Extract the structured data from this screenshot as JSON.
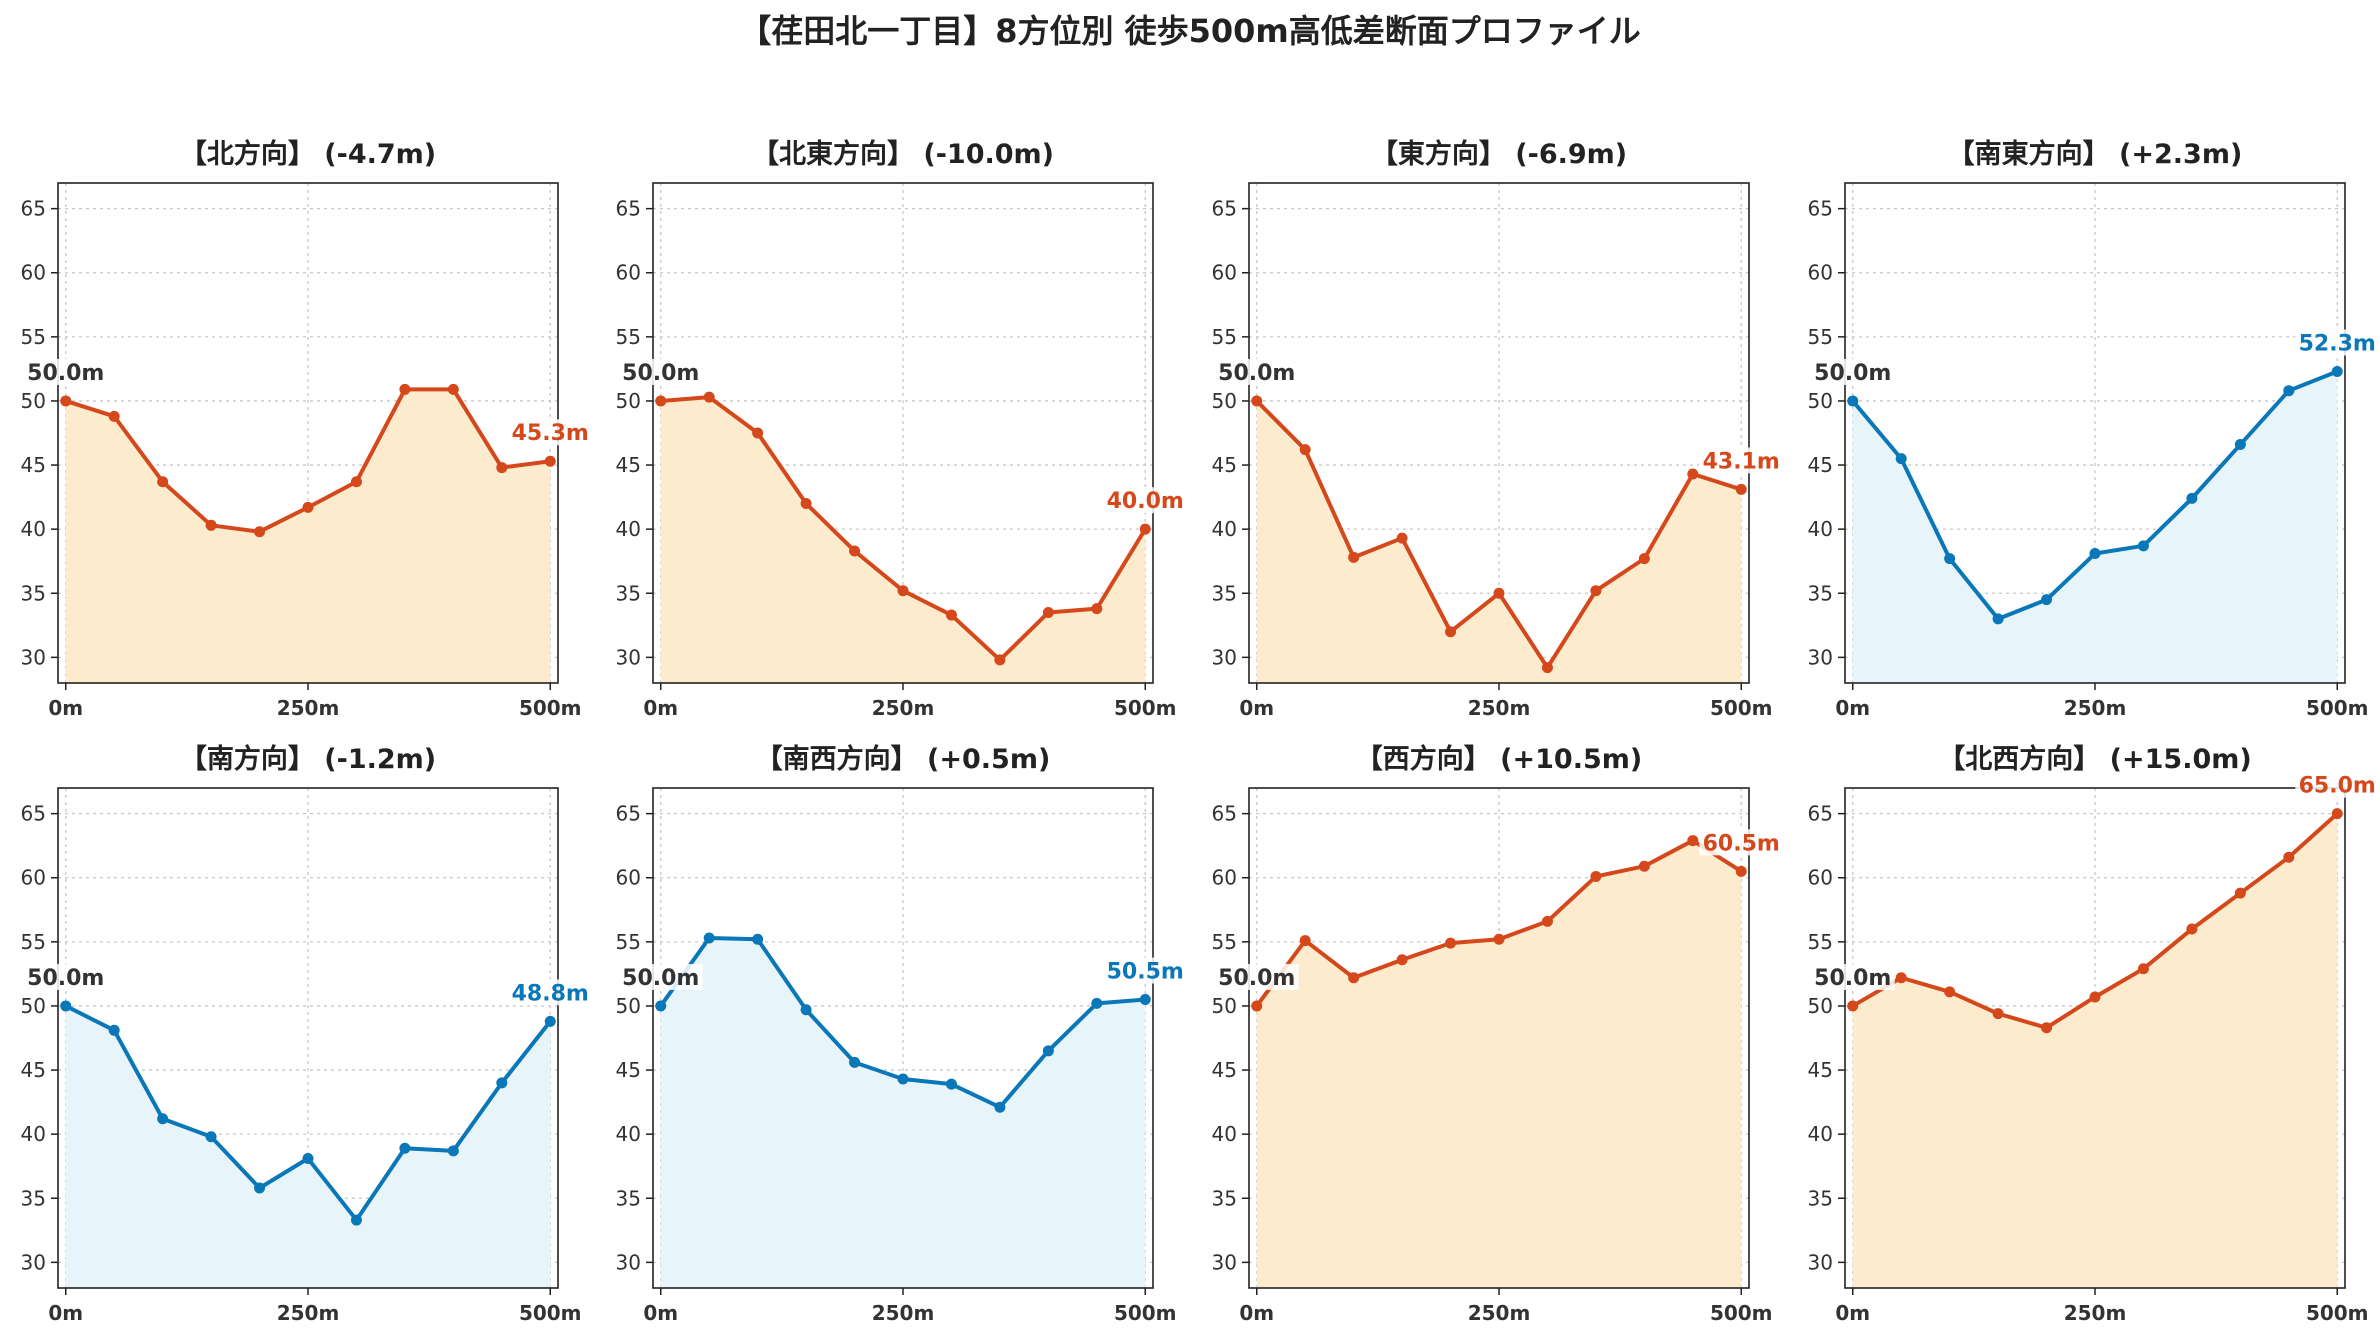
{
  "title": "【荏田北一丁目】8方位別 徒歩500m高低差断面プロファイル",
  "colors": {
    "up": "#d4481c",
    "up_fill": "#fdebcd",
    "down": "#0a77b8",
    "down_fill": "#e7f5fb",
    "start_label": "#333333"
  },
  "chart_data": [
    {
      "type": "line",
      "title": "【北方向】 (-4.7m)",
      "x": [
        0,
        50,
        100,
        150,
        200,
        250,
        300,
        350,
        400,
        450,
        500
      ],
      "values": [
        50.0,
        48.8,
        43.7,
        40.3,
        39.8,
        41.7,
        43.7,
        50.9,
        50.9,
        44.8,
        45.3
      ],
      "start_label": "50.0m",
      "end_label": "45.3m",
      "trend": "up",
      "xticks": [
        "0m",
        "250m",
        "500m"
      ],
      "yticks": [
        30,
        35,
        40,
        45,
        50,
        55,
        60,
        65
      ],
      "ylim": [
        28,
        67
      ],
      "xlim": [
        -8,
        508
      ],
      "grid": true
    },
    {
      "type": "line",
      "title": "【北東方向】 (-10.0m)",
      "x": [
        0,
        50,
        100,
        150,
        200,
        250,
        300,
        350,
        400,
        450,
        500
      ],
      "values": [
        50.0,
        50.3,
        47.5,
        42.0,
        38.3,
        35.2,
        33.3,
        29.8,
        33.5,
        33.8,
        40.0
      ],
      "start_label": "50.0m",
      "end_label": "40.0m",
      "trend": "up",
      "xticks": [
        "0m",
        "250m",
        "500m"
      ],
      "yticks": [
        30,
        35,
        40,
        45,
        50,
        55,
        60,
        65
      ],
      "ylim": [
        28,
        67
      ],
      "xlim": [
        -8,
        508
      ],
      "grid": true
    },
    {
      "type": "line",
      "title": "【東方向】 (-6.9m)",
      "x": [
        0,
        50,
        100,
        150,
        200,
        250,
        300,
        350,
        400,
        450,
        500
      ],
      "values": [
        50.0,
        46.2,
        37.8,
        39.3,
        32.0,
        35.0,
        29.2,
        35.2,
        37.7,
        44.3,
        43.1
      ],
      "start_label": "50.0m",
      "end_label": "43.1m",
      "trend": "up",
      "xticks": [
        "0m",
        "250m",
        "500m"
      ],
      "yticks": [
        30,
        35,
        40,
        45,
        50,
        55,
        60,
        65
      ],
      "ylim": [
        28,
        67
      ],
      "xlim": [
        -8,
        508
      ],
      "grid": true
    },
    {
      "type": "line",
      "title": "【南東方向】 (+2.3m)",
      "x": [
        0,
        50,
        100,
        150,
        200,
        250,
        300,
        350,
        400,
        450,
        500
      ],
      "values": [
        50.0,
        45.5,
        37.7,
        33.0,
        34.5,
        38.1,
        38.7,
        42.4,
        46.6,
        50.8,
        52.3
      ],
      "start_label": "50.0m",
      "end_label": "52.3m",
      "trend": "down",
      "xticks": [
        "0m",
        "250m",
        "500m"
      ],
      "yticks": [
        30,
        35,
        40,
        45,
        50,
        55,
        60,
        65
      ],
      "ylim": [
        28,
        67
      ],
      "xlim": [
        -8,
        508
      ],
      "grid": true
    },
    {
      "type": "line",
      "title": "【南方向】 (-1.2m)",
      "x": [
        0,
        50,
        100,
        150,
        200,
        250,
        300,
        350,
        400,
        450,
        500
      ],
      "values": [
        50.0,
        48.1,
        41.2,
        39.8,
        35.8,
        38.1,
        33.3,
        38.9,
        38.7,
        44.0,
        48.8
      ],
      "start_label": "50.0m",
      "end_label": "48.8m",
      "trend": "down",
      "xticks": [
        "0m",
        "250m",
        "500m"
      ],
      "yticks": [
        30,
        35,
        40,
        45,
        50,
        55,
        60,
        65
      ],
      "ylim": [
        28,
        67
      ],
      "xlim": [
        -8,
        508
      ],
      "grid": true
    },
    {
      "type": "line",
      "title": "【南西方向】 (+0.5m)",
      "x": [
        0,
        50,
        100,
        150,
        200,
        250,
        300,
        350,
        400,
        450,
        500
      ],
      "values": [
        50.0,
        55.3,
        55.2,
        49.7,
        45.6,
        44.3,
        43.9,
        42.1,
        46.5,
        50.2,
        50.5
      ],
      "start_label": "50.0m",
      "end_label": "50.5m",
      "trend": "down",
      "xticks": [
        "0m",
        "250m",
        "500m"
      ],
      "yticks": [
        30,
        35,
        40,
        45,
        50,
        55,
        60,
        65
      ],
      "ylim": [
        28,
        67
      ],
      "xlim": [
        -8,
        508
      ],
      "grid": true
    },
    {
      "type": "line",
      "title": "【西方向】 (+10.5m)",
      "x": [
        0,
        50,
        100,
        150,
        200,
        250,
        300,
        350,
        400,
        450,
        500
      ],
      "values": [
        50.0,
        55.1,
        52.2,
        53.6,
        54.9,
        55.2,
        56.6,
        60.1,
        60.9,
        62.9,
        60.5
      ],
      "start_label": "50.0m",
      "end_label": "60.5m",
      "trend": "up",
      "xticks": [
        "0m",
        "250m",
        "500m"
      ],
      "yticks": [
        30,
        35,
        40,
        45,
        50,
        55,
        60,
        65
      ],
      "ylim": [
        28,
        67
      ],
      "xlim": [
        -8,
        508
      ],
      "grid": true
    },
    {
      "type": "line",
      "title": "【北西方向】 (+15.0m)",
      "x": [
        0,
        50,
        100,
        150,
        200,
        250,
        300,
        350,
        400,
        450,
        500
      ],
      "values": [
        50.0,
        52.2,
        51.1,
        49.4,
        48.3,
        50.7,
        52.9,
        56.0,
        58.8,
        61.6,
        65.0
      ],
      "start_label": "50.0m",
      "end_label": "65.0m",
      "trend": "up",
      "xticks": [
        "0m",
        "250m",
        "500m"
      ],
      "yticks": [
        30,
        35,
        40,
        45,
        50,
        55,
        60,
        65
      ],
      "ylim": [
        28,
        67
      ],
      "xlim": [
        -8,
        508
      ],
      "grid": true
    }
  ]
}
